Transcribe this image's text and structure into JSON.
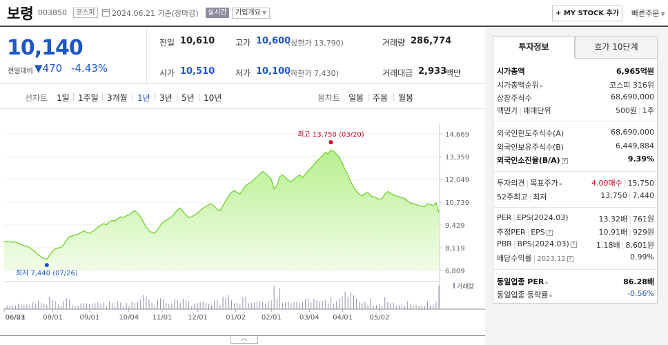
{
  "header": {
    "company_name": "보령",
    "code": "003850",
    "market": "코스피",
    "base_date": "2024.06.21 기준(장마감)",
    "realtime": "실시간",
    "overview": "기업개요",
    "mystock": "+ MY STOCK 추가",
    "quick_order": "빠른주문"
  },
  "price": {
    "current": "10,140",
    "change_label": "전일대비",
    "change_amount": "▼470",
    "change_pct": "-4.43%",
    "prev_label": "전일",
    "prev": "10,610",
    "high_label": "고가",
    "high": "10,600",
    "upper_limit": "(상한가 13,790)",
    "volume_label": "거래량",
    "volume": "286,774",
    "open_label": "시가",
    "open": "10,510",
    "low_label": "저가",
    "low": "10,100",
    "lower_limit": "(하한가 7,430)",
    "amount_label": "거래대금",
    "amount": "2,933",
    "amount_unit": "백만"
  },
  "tabs": {
    "line_chart": "선차트",
    "periods": [
      "1일",
      "1주일",
      "3개월",
      "1년",
      "3년",
      "5년",
      "10년"
    ],
    "candle_chart": "봉차트",
    "candles": [
      "일봉",
      "주봉",
      "월봉"
    ]
  },
  "collapse_icon": "chevron-up-icon",
  "chart_data": {
    "type": "area",
    "y_ticks": [
      "14,669",
      "13,359",
      "12,049",
      "10,739",
      "9,429",
      "8,119",
      "6,809"
    ],
    "ylim": [
      6809,
      14669
    ],
    "x_ticks": [
      "06/21",
      "08/01",
      "09/01",
      "10/04",
      "11/01",
      "12/01",
      "01/02",
      "02/01",
      "03/04",
      "04/01",
      "05/02",
      "06/03"
    ],
    "high_label": "최고 13,750 (03/20)",
    "low_label": "최저 7,440 (07/26)",
    "volume_legend": "거래량",
    "values": [
      8500,
      8450,
      8480,
      8420,
      8460,
      8380,
      8300,
      8250,
      8200,
      8120,
      8000,
      7880,
      7700,
      7600,
      7500,
      7440,
      7700,
      7900,
      8050,
      8100,
      8150,
      8300,
      8550,
      8750,
      8800,
      8850,
      8900,
      8980,
      9100,
      9000,
      8950,
      9050,
      9150,
      9300,
      9400,
      9500,
      9450,
      9600,
      9700,
      9650,
      9800,
      9900,
      9850,
      9950,
      10000,
      10150,
      10250,
      10100,
      9900,
      9600,
      9300,
      9100,
      9000,
      8950,
      9150,
      9400,
      9600,
      9700,
      9800,
      9900,
      10100,
      10300,
      10400,
      10200,
      10000,
      9850,
      9900,
      10000,
      10100,
      10250,
      10400,
      10500,
      10600,
      10650,
      10500,
      10300,
      10250,
      10550,
      10800,
      11100,
      11300,
      11400,
      11300,
      11200,
      11450,
      11700,
      11800,
      11900,
      12050,
      12200,
      12350,
      12500,
      12400,
      12250,
      12050,
      11500,
      11700,
      12200,
      12300,
      12150,
      12000,
      11900,
      12050,
      12200,
      12300,
      12150,
      12350,
      12550,
      12700,
      12900,
      13100,
      13250,
      13400,
      13600,
      13500,
      13750,
      13650,
      13500,
      13300,
      13000,
      12600,
      12300,
      11900,
      11600,
      11350,
      11200,
      11100,
      11250,
      11300,
      11100,
      11050,
      11000,
      10900,
      10950,
      11200,
      11350,
      11250,
      11150,
      11100,
      11050,
      11000,
      10950,
      10800,
      10700,
      10650,
      10600,
      10550,
      10500,
      10480,
      10650,
      10600,
      10550,
      10700,
      10140
    ]
  },
  "panel": {
    "tab_invest": "투자정보",
    "tab_order": "호가 10단계",
    "rows": {
      "market_cap": [
        "시가총액",
        "6,965억원"
      ],
      "market_cap_rank": [
        "시가총액순위",
        "코스피 316위"
      ],
      "shares": [
        "상장주식수",
        "68,690,000"
      ],
      "par_label": "액면가",
      "unit_label": "매매단위",
      "par_value": "500원",
      "unit_value": "1주",
      "foreign_limit": [
        "외국인한도주식수(A)",
        "68,690,000"
      ],
      "foreign_hold": [
        "외국인보유주식수(B)",
        "6,449,884"
      ],
      "foreign_ratio": [
        "외국인소진율(B/A)",
        "9.39%"
      ],
      "opinion_label": "투자의견",
      "target_label": "목표주가",
      "opinion_value": "4.00매수",
      "target_value": "15,750",
      "w52_label": "52주최고",
      "w52_low_label": "최저",
      "w52_high": "13,750",
      "w52_low": "7,440",
      "per_label": "PER",
      "eps_label": "EPS(2024.03)",
      "per_value": "13.32배",
      "eps_value": "761원",
      "eper_label": "추정PER",
      "eeps_label": "EPS",
      "eper_value": "10.91배",
      "eeps_value": "929원",
      "pbr_label": "PBR",
      "bps_label": "BPS(2024.03)",
      "pbr_value": "1.18배",
      "bps_value": "8,601원",
      "div_label": "배당수익률",
      "div_date": "2023.12",
      "div_value": "0.99%",
      "sector_per": [
        "동일업종 PER",
        "86.28배"
      ],
      "sector_change": [
        "동일업종 등락률",
        "-0.56%"
      ]
    }
  }
}
